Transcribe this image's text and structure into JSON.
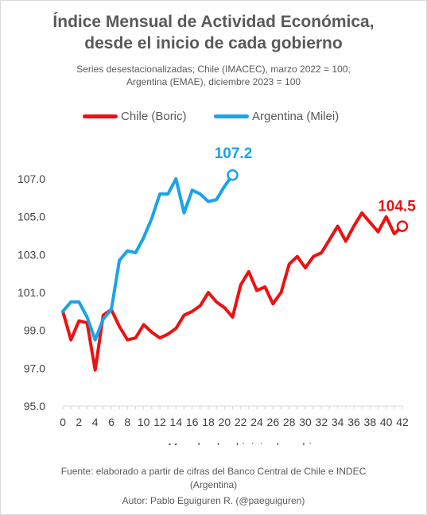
{
  "chart_data": {
    "type": "line",
    "title": "Índice Mensual de Actividad Económica,",
    "title_line2": "desde el inicio de cada gobierno",
    "subtitle_line1": "Series desestacionalizadas; Chile (IMACEC), marzo 2022 = 100;",
    "subtitle_line2": "Argentina (EMAE), diciembre 2023 = 100",
    "xlabel": "Mes desde el inicio de gobierno",
    "ylabel": "",
    "ylim": [
      95.0,
      107.0
    ],
    "xlim": [
      0,
      42
    ],
    "yticks": [
      "95.0",
      "97.0",
      "99.0",
      "101.0",
      "103.0",
      "105.0",
      "107.0"
    ],
    "xticks": [
      "0",
      "2",
      "4",
      "6",
      "8",
      "10",
      "12",
      "14",
      "16",
      "18",
      "20",
      "22",
      "24",
      "26",
      "28",
      "30",
      "32",
      "34",
      "36",
      "38",
      "40",
      "42"
    ],
    "grid": false,
    "legend_position": "top",
    "series": [
      {
        "name": "Chile (Boric)",
        "color": "#ee1111",
        "x": [
          0,
          1,
          2,
          3,
          4,
          5,
          6,
          7,
          8,
          9,
          10,
          11,
          12,
          13,
          14,
          15,
          16,
          17,
          18,
          19,
          20,
          21,
          22,
          23,
          24,
          25,
          26,
          27,
          28,
          29,
          30,
          31,
          32,
          33,
          34,
          35,
          36,
          37,
          38,
          39,
          40,
          41,
          42
        ],
        "values": [
          100.0,
          98.5,
          99.5,
          99.4,
          96.9,
          99.8,
          100.1,
          99.2,
          98.5,
          98.6,
          99.3,
          98.9,
          98.6,
          98.8,
          99.1,
          99.8,
          100.0,
          100.3,
          101.0,
          100.5,
          100.2,
          99.7,
          101.4,
          102.1,
          101.1,
          101.3,
          100.4,
          101.0,
          102.5,
          102.9,
          102.3,
          102.9,
          103.1,
          103.8,
          104.5,
          103.7,
          104.5,
          105.2,
          104.7,
          104.2,
          105.0,
          104.1,
          104.5
        ],
        "end_label": "104.5"
      },
      {
        "name": "Argentina (Milei)",
        "color": "#1ba3e8",
        "x": [
          0,
          1,
          2,
          3,
          4,
          5,
          6,
          7,
          8,
          9,
          10,
          11,
          12,
          13,
          14,
          15,
          16,
          17,
          18,
          19,
          20,
          21
        ],
        "values": [
          100.0,
          100.5,
          100.5,
          99.7,
          98.5,
          99.6,
          100.1,
          102.7,
          103.2,
          103.1,
          103.9,
          104.9,
          106.2,
          106.2,
          107.0,
          105.2,
          106.4,
          106.2,
          105.8,
          105.9,
          106.6,
          107.2
        ],
        "end_label": "107.2"
      }
    ]
  },
  "source_line1": "Fuente: elaborado a partir de cifras del Banco Central de Chile e INDEC",
  "source_line2": "(Argentina)",
  "author": "Autor: Pablo Eguiguren R. (@paeguiguren)"
}
